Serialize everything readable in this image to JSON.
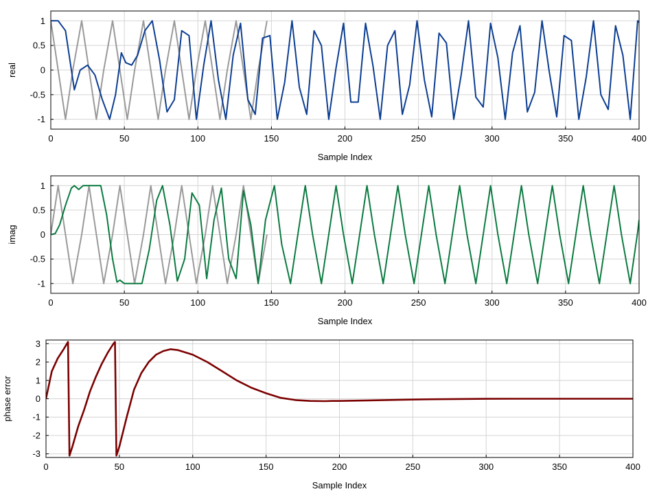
{
  "chart_data": [
    {
      "type": "line",
      "title": "",
      "xlabel": "Sample Index",
      "ylabel": "real",
      "xlim": [
        0,
        400
      ],
      "ylim": [
        -1.2,
        1.2
      ],
      "x_ticks": [
        "0",
        "50",
        "100",
        "150",
        "200",
        "250",
        "300",
        "350",
        "400"
      ],
      "y_ticks": [
        "1",
        "0.5",
        "0",
        "-0.5",
        "-1"
      ],
      "y_tick_values": [
        1,
        0.5,
        0,
        -0.5,
        -1
      ],
      "grid": true,
      "series": [
        {
          "color": "#999999",
          "x": [
            0,
            5,
            10,
            15,
            21,
            26,
            31,
            36,
            42,
            47,
            52,
            57,
            63,
            68,
            73,
            78,
            84,
            89,
            94,
            99,
            105,
            110,
            115,
            120,
            126,
            131,
            136,
            141,
            147
          ],
          "values": [
            1.0,
            0.0,
            -1.0,
            0.0,
            1.0,
            0.0,
            -1.0,
            0.0,
            1.0,
            0.0,
            -1.0,
            0.0,
            1.0,
            0.0,
            -1.0,
            0.0,
            1.0,
            0.0,
            -1.0,
            0.0,
            1.0,
            0.0,
            -1.0,
            0.0,
            1.0,
            0.0,
            -1.0,
            0.0,
            1.0
          ]
        },
        {
          "color": "#0b3d91",
          "x": [
            0,
            5,
            10,
            16,
            20,
            25,
            30,
            35,
            40,
            44,
            48,
            51,
            55,
            59,
            64,
            69,
            74,
            79,
            84,
            89,
            94,
            99,
            104,
            109,
            114,
            119,
            124,
            129,
            134,
            139,
            144,
            149,
            154,
            159,
            164,
            169,
            174,
            179,
            184,
            189,
            194,
            199,
            204,
            209,
            214,
            219,
            224,
            229,
            234,
            239,
            244,
            249,
            254,
            259,
            264,
            269,
            274,
            279,
            284,
            289,
            294,
            299,
            304,
            309,
            314,
            319,
            324,
            329,
            334,
            339,
            344,
            349,
            354,
            359,
            364,
            369,
            374,
            379,
            384,
            389,
            394,
            399,
            400
          ],
          "values": [
            1.0,
            1.0,
            0.8,
            -0.4,
            0.0,
            0.1,
            -0.1,
            -0.6,
            -1.0,
            -0.5,
            0.35,
            0.15,
            0.1,
            0.3,
            0.8,
            1.0,
            0.2,
            -0.85,
            -0.6,
            0.8,
            0.7,
            -1.0,
            0.1,
            1.0,
            -0.2,
            -1.0,
            0.3,
            0.95,
            -0.6,
            -0.9,
            0.65,
            0.7,
            -1.0,
            -0.25,
            1.0,
            -0.35,
            -0.9,
            0.8,
            0.5,
            -1.0,
            0.05,
            0.95,
            -0.65,
            -0.65,
            0.95,
            0.1,
            -1.0,
            0.5,
            0.8,
            -0.9,
            -0.3,
            1.0,
            -0.2,
            -0.95,
            0.75,
            0.55,
            -1.0,
            -0.1,
            1.0,
            -0.55,
            -0.75,
            0.95,
            0.25,
            -1.0,
            0.35,
            0.9,
            -0.85,
            -0.45,
            1.0,
            -0.05,
            -0.95,
            0.7,
            0.6,
            -1.0,
            -0.15,
            1.0,
            -0.5,
            -0.8,
            0.9,
            0.3,
            -1.0,
            1.0,
            0.97
          ]
        }
      ]
    },
    {
      "type": "line",
      "title": "",
      "xlabel": "Sample Index",
      "ylabel": "imag",
      "xlim": [
        0,
        400
      ],
      "ylim": [
        -1.2,
        1.2
      ],
      "x_ticks": [
        "0",
        "50",
        "100",
        "150",
        "200",
        "250",
        "300",
        "350",
        "400"
      ],
      "y_ticks": [
        "1",
        "0.5",
        "0",
        "-0.5",
        "-1"
      ],
      "y_tick_values": [
        1,
        0.5,
        0,
        -0.5,
        -1
      ],
      "grid": true,
      "series": [
        {
          "color": "#999999",
          "x": [
            0,
            5,
            10,
            15,
            21,
            26,
            31,
            36,
            42,
            47,
            52,
            57,
            63,
            68,
            73,
            78,
            84,
            89,
            94,
            99,
            105,
            110,
            115,
            120,
            126,
            131,
            136,
            141,
            147
          ],
          "values": [
            0.0,
            1.0,
            0.0,
            -1.0,
            0.0,
            1.0,
            0.0,
            -1.0,
            0.0,
            1.0,
            0.0,
            -1.0,
            0.0,
            1.0,
            0.0,
            -1.0,
            0.0,
            1.0,
            0.0,
            -1.0,
            0.0,
            1.0,
            0.0,
            -1.0,
            0.0,
            1.0,
            0.0,
            -1.0,
            0.0
          ]
        },
        {
          "color": "#0a7a3f",
          "x": [
            0,
            3,
            6,
            10,
            14,
            16,
            19,
            22,
            28,
            34,
            38,
            42,
            45,
            47,
            50,
            55,
            62,
            67,
            72,
            76,
            81,
            86,
            91,
            96,
            101,
            106,
            111,
            116,
            121,
            126,
            131,
            136,
            141,
            146,
            152,
            157,
            163,
            168,
            173,
            178,
            184,
            189,
            194,
            199,
            205,
            210,
            215,
            220,
            226,
            231,
            236,
            241,
            247,
            252,
            257,
            262,
            268,
            273,
            278,
            283,
            289,
            294,
            299,
            304,
            310,
            315,
            320,
            325,
            331,
            336,
            341,
            346,
            352,
            357,
            362,
            367,
            373,
            378,
            383,
            388,
            394,
            399,
            400
          ],
          "values": [
            0.0,
            0.02,
            0.2,
            0.6,
            0.95,
            1.0,
            0.92,
            1.0,
            1.0,
            1.0,
            0.4,
            -0.5,
            -0.97,
            -0.93,
            -1.0,
            -1.0,
            -1.0,
            -0.3,
            0.7,
            1.0,
            0.2,
            -0.95,
            -0.5,
            0.85,
            0.6,
            -0.9,
            0.3,
            0.95,
            -0.5,
            -0.9,
            0.9,
            0.2,
            -1.0,
            0.3,
            1.0,
            -0.2,
            -1.0,
            0.0,
            1.0,
            0.0,
            -1.0,
            0.0,
            1.0,
            0.0,
            -1.0,
            0.0,
            1.0,
            0.0,
            -1.0,
            0.0,
            1.0,
            0.0,
            -1.0,
            0.0,
            1.0,
            0.0,
            -1.0,
            0.0,
            1.0,
            0.0,
            -1.0,
            0.0,
            1.0,
            0.0,
            -1.0,
            0.0,
            1.0,
            0.0,
            -1.0,
            0.0,
            1.0,
            0.0,
            -1.0,
            0.0,
            1.0,
            0.0,
            -1.0,
            0.0,
            1.0,
            0.0,
            -1.0,
            0.05,
            0.3
          ]
        }
      ]
    },
    {
      "type": "line",
      "title": "",
      "xlabel": "Sample Index",
      "ylabel": "phase error",
      "xlim": [
        0,
        400
      ],
      "ylim": [
        -3.2,
        3.2
      ],
      "x_ticks": [
        "0",
        "50",
        "100",
        "150",
        "200",
        "250",
        "300",
        "350",
        "400"
      ],
      "y_ticks": [
        "3",
        "2",
        "1",
        "0",
        "-1",
        "-2",
        "-3"
      ],
      "y_tick_values": [
        3,
        2,
        1,
        0,
        -1,
        -2,
        -3
      ],
      "grid": true,
      "series": [
        {
          "color": "#7b0000",
          "x": [
            0,
            4,
            8,
            12,
            15,
            16,
            18,
            22,
            26,
            30,
            34,
            38,
            42,
            46,
            47,
            48,
            50,
            55,
            60,
            65,
            70,
            75,
            80,
            85,
            90,
            100,
            110,
            120,
            130,
            140,
            150,
            160,
            170,
            180,
            190,
            195,
            200,
            220,
            240,
            260,
            280,
            300,
            320,
            340,
            360,
            380,
            400
          ],
          "values": [
            0.0,
            1.5,
            2.2,
            2.7,
            3.1,
            -3.1,
            -2.6,
            -1.5,
            -0.6,
            0.4,
            1.2,
            1.9,
            2.5,
            3.0,
            3.1,
            -3.1,
            -2.6,
            -1.0,
            0.5,
            1.4,
            2.0,
            2.4,
            2.6,
            2.7,
            2.65,
            2.4,
            2.0,
            1.5,
            1.0,
            0.6,
            0.3,
            0.05,
            -0.07,
            -0.12,
            -0.13,
            -0.12,
            -0.12,
            -0.09,
            -0.06,
            -0.03,
            -0.015,
            -0.005,
            0.0,
            0.0,
            0.0,
            0.0,
            0.0
          ]
        }
      ]
    }
  ]
}
